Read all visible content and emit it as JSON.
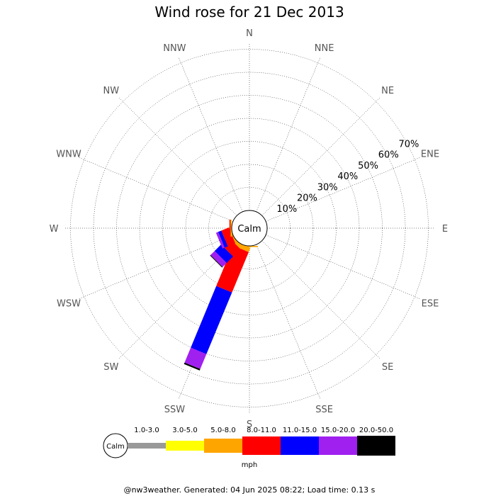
{
  "chart_data": {
    "type": "wind-rose",
    "title": "Wind rose for 21 Dec 2013",
    "directions": [
      "N",
      "NNE",
      "NE",
      "ENE",
      "E",
      "ESE",
      "SE",
      "SSE",
      "S",
      "SSW",
      "SW",
      "WSW",
      "W",
      "WNW",
      "NW",
      "NNW"
    ],
    "radial_ticks": [
      "10%",
      "20%",
      "30%",
      "40%",
      "50%",
      "60%",
      "70%"
    ],
    "radial_max_percent": 70,
    "center_label": "Calm",
    "unit_label": "mph",
    "speed_bins": [
      {
        "label": "1.0-3.0",
        "color": "#999999"
      },
      {
        "label": "3.0-5.0",
        "color": "#ffff00"
      },
      {
        "label": "5.0-8.0",
        "color": "#ffa500"
      },
      {
        "label": "8.0-11.0",
        "color": "#ff0000"
      },
      {
        "label": "11.0-15.0",
        "color": "#0000ff"
      },
      {
        "label": "15.0-20.0",
        "color": "#a020f0"
      },
      {
        "label": "20.0-50.0",
        "color": "#000000"
      }
    ],
    "series": [
      {
        "direction": "S",
        "values": [
          0,
          0,
          0.5,
          0,
          0,
          0,
          0
        ]
      },
      {
        "direction": "SSW",
        "values": [
          0,
          0,
          2.0,
          19.0,
          29.0,
          7.0,
          0.7
        ]
      },
      {
        "direction": "SW",
        "values": [
          0,
          0,
          1.5,
          4.5,
          4.0,
          2.5,
          0.3
        ]
      },
      {
        "direction": "WSW",
        "values": [
          0,
          0,
          0.5,
          3.5,
          1.5,
          1.0,
          0
        ]
      },
      {
        "direction": "W",
        "values": [
          0,
          0.2,
          0.3,
          0.5,
          0,
          0,
          0
        ]
      }
    ]
  },
  "footer": "@nw3weather. Generated: 04 Jun 2025 08:22; Load time: 0.13 s"
}
